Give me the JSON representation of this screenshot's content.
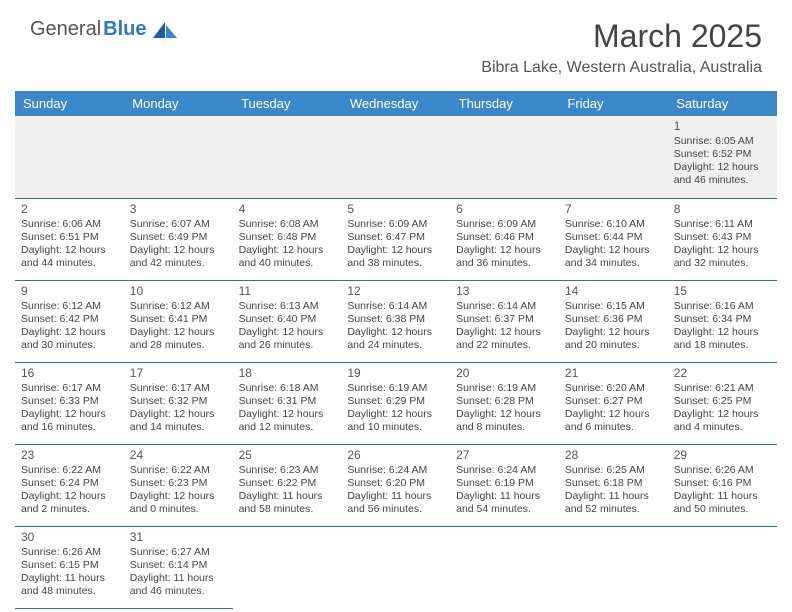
{
  "logo": {
    "brand_a": "General",
    "brand_b": "Blue"
  },
  "title": "March 2025",
  "location": "Bibra Lake, Western Australia, Australia",
  "colors": {
    "header_bg": "#3b87c8",
    "accent": "#2f7ac0",
    "row_border": "#2b6fa8",
    "empty_bg": "#f0f0f0",
    "text": "#444444"
  },
  "weekdays": [
    "Sunday",
    "Monday",
    "Tuesday",
    "Wednesday",
    "Thursday",
    "Friday",
    "Saturday"
  ],
  "cells": [
    [
      {
        "empty": true
      },
      {
        "empty": true
      },
      {
        "empty": true
      },
      {
        "empty": true
      },
      {
        "empty": true
      },
      {
        "empty": true
      },
      {
        "day": "1",
        "sunrise": "Sunrise: 6:05 AM",
        "sunset": "Sunset: 6:52 PM",
        "daylight": "Daylight: 12 hours and 46 minutes."
      }
    ],
    [
      {
        "day": "2",
        "sunrise": "Sunrise: 6:06 AM",
        "sunset": "Sunset: 6:51 PM",
        "daylight": "Daylight: 12 hours and 44 minutes."
      },
      {
        "day": "3",
        "sunrise": "Sunrise: 6:07 AM",
        "sunset": "Sunset: 6:49 PM",
        "daylight": "Daylight: 12 hours and 42 minutes."
      },
      {
        "day": "4",
        "sunrise": "Sunrise: 6:08 AM",
        "sunset": "Sunset: 6:48 PM",
        "daylight": "Daylight: 12 hours and 40 minutes."
      },
      {
        "day": "5",
        "sunrise": "Sunrise: 6:09 AM",
        "sunset": "Sunset: 6:47 PM",
        "daylight": "Daylight: 12 hours and 38 minutes."
      },
      {
        "day": "6",
        "sunrise": "Sunrise: 6:09 AM",
        "sunset": "Sunset: 6:46 PM",
        "daylight": "Daylight: 12 hours and 36 minutes."
      },
      {
        "day": "7",
        "sunrise": "Sunrise: 6:10 AM",
        "sunset": "Sunset: 6:44 PM",
        "daylight": "Daylight: 12 hours and 34 minutes."
      },
      {
        "day": "8",
        "sunrise": "Sunrise: 6:11 AM",
        "sunset": "Sunset: 6:43 PM",
        "daylight": "Daylight: 12 hours and 32 minutes."
      }
    ],
    [
      {
        "day": "9",
        "sunrise": "Sunrise: 6:12 AM",
        "sunset": "Sunset: 6:42 PM",
        "daylight": "Daylight: 12 hours and 30 minutes."
      },
      {
        "day": "10",
        "sunrise": "Sunrise: 6:12 AM",
        "sunset": "Sunset: 6:41 PM",
        "daylight": "Daylight: 12 hours and 28 minutes."
      },
      {
        "day": "11",
        "sunrise": "Sunrise: 6:13 AM",
        "sunset": "Sunset: 6:40 PM",
        "daylight": "Daylight: 12 hours and 26 minutes."
      },
      {
        "day": "12",
        "sunrise": "Sunrise: 6:14 AM",
        "sunset": "Sunset: 6:38 PM",
        "daylight": "Daylight: 12 hours and 24 minutes."
      },
      {
        "day": "13",
        "sunrise": "Sunrise: 6:14 AM",
        "sunset": "Sunset: 6:37 PM",
        "daylight": "Daylight: 12 hours and 22 minutes."
      },
      {
        "day": "14",
        "sunrise": "Sunrise: 6:15 AM",
        "sunset": "Sunset: 6:36 PM",
        "daylight": "Daylight: 12 hours and 20 minutes."
      },
      {
        "day": "15",
        "sunrise": "Sunrise: 6:16 AM",
        "sunset": "Sunset: 6:34 PM",
        "daylight": "Daylight: 12 hours and 18 minutes."
      }
    ],
    [
      {
        "day": "16",
        "sunrise": "Sunrise: 6:17 AM",
        "sunset": "Sunset: 6:33 PM",
        "daylight": "Daylight: 12 hours and 16 minutes."
      },
      {
        "day": "17",
        "sunrise": "Sunrise: 6:17 AM",
        "sunset": "Sunset: 6:32 PM",
        "daylight": "Daylight: 12 hours and 14 minutes."
      },
      {
        "day": "18",
        "sunrise": "Sunrise: 6:18 AM",
        "sunset": "Sunset: 6:31 PM",
        "daylight": "Daylight: 12 hours and 12 minutes."
      },
      {
        "day": "19",
        "sunrise": "Sunrise: 6:19 AM",
        "sunset": "Sunset: 6:29 PM",
        "daylight": "Daylight: 12 hours and 10 minutes."
      },
      {
        "day": "20",
        "sunrise": "Sunrise: 6:19 AM",
        "sunset": "Sunset: 6:28 PM",
        "daylight": "Daylight: 12 hours and 8 minutes."
      },
      {
        "day": "21",
        "sunrise": "Sunrise: 6:20 AM",
        "sunset": "Sunset: 6:27 PM",
        "daylight": "Daylight: 12 hours and 6 minutes."
      },
      {
        "day": "22",
        "sunrise": "Sunrise: 6:21 AM",
        "sunset": "Sunset: 6:25 PM",
        "daylight": "Daylight: 12 hours and 4 minutes."
      }
    ],
    [
      {
        "day": "23",
        "sunrise": "Sunrise: 6:22 AM",
        "sunset": "Sunset: 6:24 PM",
        "daylight": "Daylight: 12 hours and 2 minutes."
      },
      {
        "day": "24",
        "sunrise": "Sunrise: 6:22 AM",
        "sunset": "Sunset: 6:23 PM",
        "daylight": "Daylight: 12 hours and 0 minutes."
      },
      {
        "day": "25",
        "sunrise": "Sunrise: 6:23 AM",
        "sunset": "Sunset: 6:22 PM",
        "daylight": "Daylight: 11 hours and 58 minutes."
      },
      {
        "day": "26",
        "sunrise": "Sunrise: 6:24 AM",
        "sunset": "Sunset: 6:20 PM",
        "daylight": "Daylight: 11 hours and 56 minutes."
      },
      {
        "day": "27",
        "sunrise": "Sunrise: 6:24 AM",
        "sunset": "Sunset: 6:19 PM",
        "daylight": "Daylight: 11 hours and 54 minutes."
      },
      {
        "day": "28",
        "sunrise": "Sunrise: 6:25 AM",
        "sunset": "Sunset: 6:18 PM",
        "daylight": "Daylight: 11 hours and 52 minutes."
      },
      {
        "day": "29",
        "sunrise": "Sunrise: 6:26 AM",
        "sunset": "Sunset: 6:16 PM",
        "daylight": "Daylight: 11 hours and 50 minutes."
      }
    ],
    [
      {
        "day": "30",
        "sunrise": "Sunrise: 6:26 AM",
        "sunset": "Sunset: 6:15 PM",
        "daylight": "Daylight: 11 hours and 48 minutes."
      },
      {
        "day": "31",
        "sunrise": "Sunrise: 6:27 AM",
        "sunset": "Sunset: 6:14 PM",
        "daylight": "Daylight: 11 hours and 46 minutes."
      },
      {
        "trailing": true
      },
      {
        "trailing": true
      },
      {
        "trailing": true
      },
      {
        "trailing": true
      },
      {
        "trailing": true
      }
    ]
  ]
}
